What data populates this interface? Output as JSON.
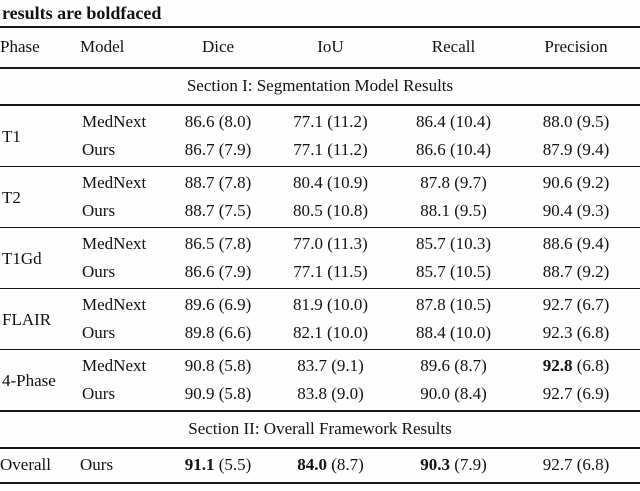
{
  "caption": "results are boldfaced",
  "table": {
    "headers": [
      "Phase",
      "Model",
      "Dice",
      "IoU",
      "Recall",
      "Precision"
    ],
    "section1": "Section I: Segmentation Model Results",
    "section2": "Section II: Overall Framework Results",
    "groups": [
      {
        "phase": "T1",
        "rows": [
          {
            "model": "MedNext",
            "cells": [
              {
                "v": "86.6",
                "sd": "(8.0)",
                "cls": ""
              },
              {
                "v": "77.1",
                "sd": "(11.2)",
                "cls": ""
              },
              {
                "v": "86.4",
                "sd": "(10.4)",
                "cls": ""
              },
              {
                "v": "88.0",
                "sd": "(9.5)",
                "cls": ""
              }
            ]
          },
          {
            "model": "Ours",
            "cells": [
              {
                "v": "86.7",
                "sd": "(7.9)",
                "cls": ""
              },
              {
                "v": "77.1",
                "sd": "(11.2)",
                "cls": ""
              },
              {
                "v": "86.6",
                "sd": "(10.4)",
                "cls": ""
              },
              {
                "v": "87.9",
                "sd": "(9.4)",
                "cls": ""
              }
            ]
          }
        ]
      },
      {
        "phase": "T2",
        "rows": [
          {
            "model": "MedNext",
            "cells": [
              {
                "v": "88.7",
                "sd": "(7.8)",
                "cls": ""
              },
              {
                "v": "80.4",
                "sd": "(10.9)",
                "cls": ""
              },
              {
                "v": "87.8",
                "sd": "(9.7)",
                "cls": ""
              },
              {
                "v": "90.6",
                "sd": "(9.2)",
                "cls": ""
              }
            ]
          },
          {
            "model": "Ours",
            "cells": [
              {
                "v": "88.7",
                "sd": "(7.5)",
                "cls": ""
              },
              {
                "v": "80.5",
                "sd": "(10.8)",
                "cls": ""
              },
              {
                "v": "88.1",
                "sd": "(9.5)",
                "cls": ""
              },
              {
                "v": "90.4",
                "sd": "(9.3)",
                "cls": ""
              }
            ]
          }
        ]
      },
      {
        "phase": "T1Gd",
        "rows": [
          {
            "model": "MedNext",
            "cells": [
              {
                "v": "86.5",
                "sd": "(7.8)",
                "cls": ""
              },
              {
                "v": "77.0",
                "sd": "(11.3)",
                "cls": ""
              },
              {
                "v": "85.7",
                "sd": "(10.3)",
                "cls": ""
              },
              {
                "v": "88.6",
                "sd": "(9.4)",
                "cls": ""
              }
            ]
          },
          {
            "model": "Ours",
            "cells": [
              {
                "v": "86.6",
                "sd": "(7.9)",
                "cls": ""
              },
              {
                "v": "77.1",
                "sd": "(11.5)",
                "cls": ""
              },
              {
                "v": "85.7",
                "sd": "(10.5)",
                "cls": ""
              },
              {
                "v": "88.7",
                "sd": "(9.2)",
                "cls": ""
              }
            ]
          }
        ]
      },
      {
        "phase": "FLAIR",
        "rows": [
          {
            "model": "MedNext",
            "cells": [
              {
                "v": "89.6",
                "sd": "(6.9)",
                "cls": ""
              },
              {
                "v": "81.9",
                "sd": "(10.0)",
                "cls": ""
              },
              {
                "v": "87.8",
                "sd": "(10.5)",
                "cls": ""
              },
              {
                "v": "92.7",
                "sd": "(6.7)",
                "cls": ""
              }
            ]
          },
          {
            "model": "Ours",
            "cells": [
              {
                "v": "89.8",
                "sd": "(6.6)",
                "cls": ""
              },
              {
                "v": "82.1",
                "sd": "(10.0)",
                "cls": ""
              },
              {
                "v": "88.4",
                "sd": "(10.0)",
                "cls": ""
              },
              {
                "v": "92.3",
                "sd": "(6.8)",
                "cls": ""
              }
            ]
          }
        ]
      },
      {
        "phase": "4-Phase",
        "rows": [
          {
            "model": "MedNext",
            "cells": [
              {
                "v": "90.8",
                "sd": "(5.8)",
                "cls": ""
              },
              {
                "v": "83.7",
                "sd": "(9.1)",
                "cls": ""
              },
              {
                "v": "89.6",
                "sd": "(8.7)",
                "cls": ""
              },
              {
                "v": "92.8",
                "sd": "(6.8)",
                "cls": "bold"
              }
            ]
          },
          {
            "model": "Ours",
            "cells": [
              {
                "v": "90.9",
                "sd": "(5.8)",
                "cls": ""
              },
              {
                "v": "83.8",
                "sd": "(9.0)",
                "cls": ""
              },
              {
                "v": "90.0",
                "sd": "(8.4)",
                "cls": ""
              },
              {
                "v": "92.7",
                "sd": "(6.9)",
                "cls": ""
              }
            ]
          }
        ]
      }
    ],
    "overall": {
      "phase": "Overall",
      "model": "Ours",
      "cells": [
        {
          "v": "91.1",
          "sd": "(5.5)",
          "cls": "bold"
        },
        {
          "v": "84.0",
          "sd": "(8.7)",
          "cls": "bold"
        },
        {
          "v": "90.3",
          "sd": "(7.9)",
          "cls": "bold"
        },
        {
          "v": "92.7",
          "sd": "(6.8)",
          "cls": ""
        }
      ]
    }
  }
}
